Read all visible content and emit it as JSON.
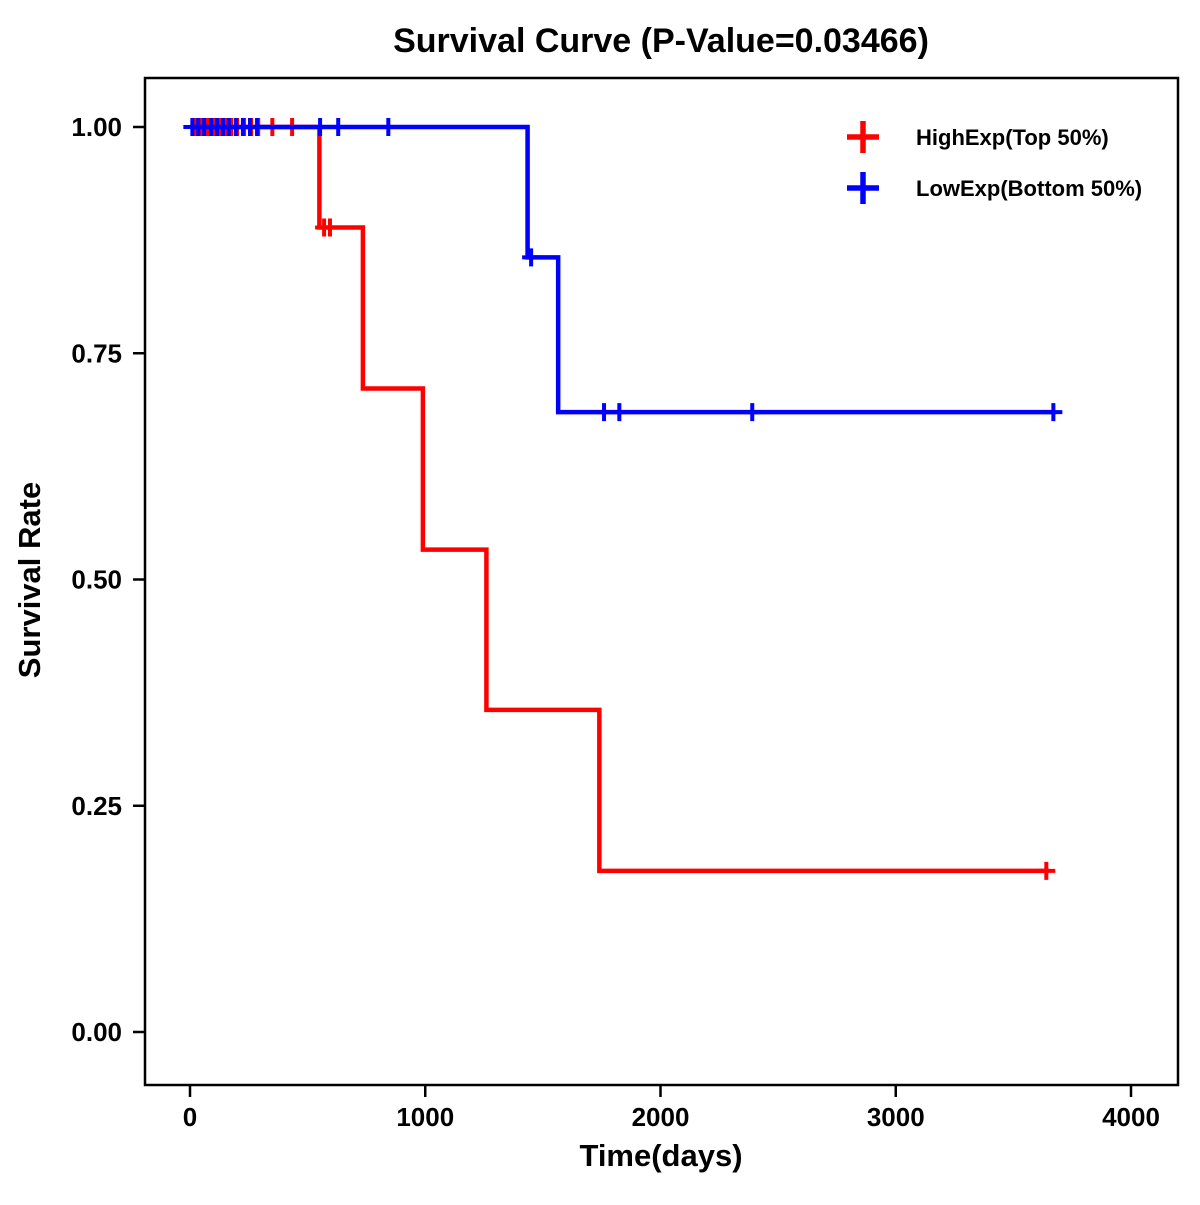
{
  "page": {
    "background": "#ffffff"
  },
  "chart_data": {
    "type": "line",
    "subtype": "kaplan-meier-step",
    "title": "Survival Curve (P-Value=0.03466)",
    "p_value": "0.03466",
    "xlabel": "Time(days)",
    "ylabel": "Survival Rate",
    "xlim": [
      -190,
      4200
    ],
    "ylim": [
      0,
      1.0
    ],
    "x_ticks": [
      0,
      1000,
      2000,
      3000,
      4000
    ],
    "y_ticks": [
      {
        "value": 0.0,
        "label": "0.00"
      },
      {
        "value": 0.25,
        "label": "0.25"
      },
      {
        "value": 0.5,
        "label": "0.50"
      },
      {
        "value": 0.75,
        "label": "0.75"
      },
      {
        "value": 1.0,
        "label": "1.00"
      }
    ],
    "grid": false,
    "legend_position": "top-right",
    "series": [
      {
        "name": "HighExp(Top 50%)",
        "color": "#FF0000",
        "steps": [
          [
            0,
            1.0
          ],
          [
            550,
            0.889
          ],
          [
            735,
            0.711
          ],
          [
            990,
            0.533
          ],
          [
            1260,
            0.356
          ],
          [
            1740,
            0.178
          ],
          [
            3650,
            0.178
          ]
        ],
        "censor_marks": [
          [
            20,
            1.0
          ],
          [
            50,
            1.0
          ],
          [
            75,
            1.0
          ],
          [
            100,
            1.0
          ],
          [
            125,
            1.0
          ],
          [
            150,
            1.0
          ],
          [
            175,
            1.0
          ],
          [
            200,
            1.0
          ],
          [
            230,
            1.0
          ],
          [
            260,
            1.0
          ],
          [
            290,
            1.0
          ],
          [
            350,
            1.0
          ],
          [
            434,
            1.0
          ],
          [
            570,
            0.889
          ],
          [
            595,
            0.889
          ],
          [
            3640,
            0.178
          ]
        ]
      },
      {
        "name": "LowExp(Bottom 50%)",
        "color": "#0000FF",
        "steps": [
          [
            0,
            1.0
          ],
          [
            1435,
            0.856
          ],
          [
            1565,
            0.685
          ],
          [
            3680,
            0.685
          ]
        ],
        "censor_marks": [
          [
            10,
            1.0
          ],
          [
            35,
            1.0
          ],
          [
            60,
            1.0
          ],
          [
            90,
            1.0
          ],
          [
            115,
            1.0
          ],
          [
            140,
            1.0
          ],
          [
            165,
            1.0
          ],
          [
            195,
            1.0
          ],
          [
            225,
            1.0
          ],
          [
            255,
            1.0
          ],
          [
            285,
            1.0
          ],
          [
            553,
            1.0
          ],
          [
            630,
            1.0
          ],
          [
            843,
            1.0
          ],
          [
            1450,
            0.856
          ],
          [
            1760,
            0.685
          ],
          [
            1825,
            0.685
          ],
          [
            2390,
            0.685
          ],
          [
            3670,
            0.685
          ]
        ]
      }
    ]
  }
}
